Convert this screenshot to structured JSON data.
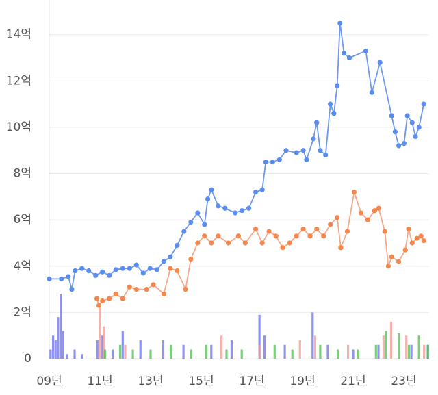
{
  "chart_data": {
    "type": "line",
    "xlim": [
      2009,
      2024
    ],
    "xticks": [
      {
        "value": 2009,
        "label": "09년"
      },
      {
        "value": 2011,
        "label": "11년"
      },
      {
        "value": 2013,
        "label": "13년"
      },
      {
        "value": 2015,
        "label": "15년"
      },
      {
        "value": 2017,
        "label": "17년"
      },
      {
        "value": 2019,
        "label": "19년"
      },
      {
        "value": 2021,
        "label": "21년"
      },
      {
        "value": 2023,
        "label": "23년"
      }
    ],
    "ylim": [
      0,
      15.5
    ],
    "yticks": [
      0,
      {
        "value": 2,
        "label": "2억"
      },
      {
        "value": 4,
        "label": "4억"
      },
      {
        "value": 6,
        "label": "6억"
      },
      {
        "value": 8,
        "label": "8억"
      },
      {
        "value": 10,
        "label": "10억"
      },
      {
        "value": 12,
        "label": "12억"
      },
      {
        "value": 14,
        "label": "14억"
      }
    ],
    "grid": true,
    "series": [
      {
        "kind": "bar",
        "color": "#6a6ff0",
        "x": [
          2009.05,
          2009.15,
          2009.25,
          2009.35,
          2009.45,
          2009.55,
          2009.7,
          2010.0,
          2010.3,
          2010.9,
          2011.1,
          2011.5,
          2011.9,
          2012.6,
          2013.5,
          2014.3,
          2015.4,
          2016.2,
          2017.3,
          2017.5,
          2018.3,
          2019.4,
          2020.0,
          2021.0,
          2022.0,
          2023.3,
          2023.95
        ],
        "values": [
          0.4,
          1.0,
          0.8,
          1.8,
          2.8,
          1.2,
          0.2,
          0.4,
          0.2,
          0.8,
          1.0,
          0.4,
          1.2,
          0.8,
          0.8,
          0.6,
          0.6,
          0.8,
          1.9,
          1.0,
          0.6,
          2.0,
          0.6,
          0.4,
          0.6,
          0.6,
          0.6
        ]
      },
      {
        "kind": "bar",
        "color": "#f29a92",
        "x": [
          2011.0,
          2011.15,
          2012.0,
          2015.8,
          2017.3,
          2018.9,
          2019.5,
          2020.8,
          2022.2,
          2022.5,
          2023.1,
          2023.8
        ],
        "values": [
          2.2,
          1.4,
          0.6,
          1.0,
          0.6,
          0.8,
          1.0,
          0.6,
          1.0,
          1.6,
          1.0,
          0.6
        ]
      },
      {
        "kind": "bar",
        "color": "#4fbf4f",
        "x": [
          2011.2,
          2011.8,
          2012.3,
          2013.0,
          2013.8,
          2014.6,
          2015.2,
          2016.0,
          2016.6,
          2017.9,
          2018.6,
          2019.7,
          2020.4,
          2021.2,
          2021.9,
          2022.3,
          2022.8,
          2023.2,
          2023.6,
          2023.95
        ],
        "values": [
          0.4,
          0.6,
          0.4,
          0.4,
          0.6,
          0.4,
          0.6,
          0.4,
          0.4,
          0.6,
          0.4,
          0.6,
          0.4,
          0.4,
          0.6,
          1.2,
          1.1,
          0.6,
          1.0,
          0.6
        ]
      },
      {
        "kind": "line",
        "color": "#f4874b",
        "line_color": "#f5a88a",
        "x": [
          2010.88,
          2010.96,
          2011.1,
          2011.37,
          2011.63,
          2011.9,
          2012.17,
          2012.44,
          2012.84,
          2013.11,
          2013.52,
          2013.78,
          2014.05,
          2014.38,
          2014.59,
          2014.86,
          2015.13,
          2015.4,
          2015.67,
          2016.07,
          2016.47,
          2016.74,
          2017.15,
          2017.41,
          2017.68,
          2017.95,
          2018.22,
          2018.49,
          2018.76,
          2019.03,
          2019.3,
          2019.56,
          2019.83,
          2020.1,
          2020.37,
          2020.51,
          2020.77,
          2021.04,
          2021.31,
          2021.58,
          2021.85,
          2022.01,
          2022.25,
          2022.39,
          2022.52,
          2022.8,
          2023.06,
          2023.19,
          2023.33,
          2023.52,
          2023.68,
          2023.79
        ],
        "values": [
          2.6,
          2.3,
          2.5,
          2.6,
          2.8,
          2.6,
          3.1,
          3.0,
          3.0,
          3.2,
          2.8,
          3.9,
          3.8,
          3.0,
          4.3,
          5.0,
          5.3,
          5.0,
          5.3,
          5.0,
          5.3,
          5.0,
          5.6,
          5.0,
          5.5,
          5.3,
          4.8,
          5.0,
          5.3,
          5.6,
          5.3,
          5.6,
          5.3,
          5.8,
          6.1,
          4.8,
          5.5,
          7.2,
          6.3,
          6.0,
          6.4,
          6.5,
          5.5,
          4.0,
          4.4,
          4.2,
          4.7,
          5.6,
          5.0,
          5.2,
          5.3,
          5.1
        ]
      },
      {
        "kind": "line",
        "color": "#5b8def",
        "line_color": "#6f98ef",
        "x": [
          2009.0,
          2009.48,
          2009.75,
          2009.89,
          2010.02,
          2010.29,
          2010.56,
          2010.83,
          2011.1,
          2011.37,
          2011.63,
          2011.9,
          2012.17,
          2012.44,
          2012.71,
          2012.98,
          2013.25,
          2013.52,
          2013.78,
          2014.05,
          2014.32,
          2014.59,
          2014.86,
          2015.13,
          2015.26,
          2015.4,
          2015.67,
          2015.94,
          2016.34,
          2016.61,
          2016.88,
          2017.15,
          2017.41,
          2017.55,
          2017.82,
          2018.09,
          2018.35,
          2018.76,
          2019.03,
          2019.16,
          2019.43,
          2019.56,
          2019.7,
          2019.91,
          2020.1,
          2020.24,
          2020.37,
          2020.48,
          2020.64,
          2020.85,
          2021.5,
          2021.74,
          2022.06,
          2022.52,
          2022.66,
          2022.8,
          2023.01,
          2023.14,
          2023.33,
          2023.46,
          2023.6,
          2023.79
        ],
        "values": [
          3.45,
          3.45,
          3.55,
          3.0,
          3.8,
          3.9,
          3.8,
          3.6,
          3.75,
          3.6,
          3.85,
          3.9,
          3.9,
          4.05,
          3.7,
          3.9,
          3.85,
          4.2,
          4.4,
          4.9,
          5.5,
          5.9,
          6.3,
          5.8,
          6.9,
          7.3,
          6.6,
          6.5,
          6.3,
          6.4,
          6.5,
          7.2,
          7.3,
          8.5,
          8.5,
          8.6,
          9.0,
          8.9,
          9.0,
          8.6,
          9.5,
          10.2,
          9.0,
          8.8,
          11.0,
          10.6,
          11.8,
          14.5,
          13.2,
          13.0,
          13.3,
          11.5,
          12.8,
          10.5,
          9.8,
          9.2,
          9.3,
          10.5,
          10.2,
          9.6,
          10.0,
          11.0
        ]
      }
    ]
  }
}
